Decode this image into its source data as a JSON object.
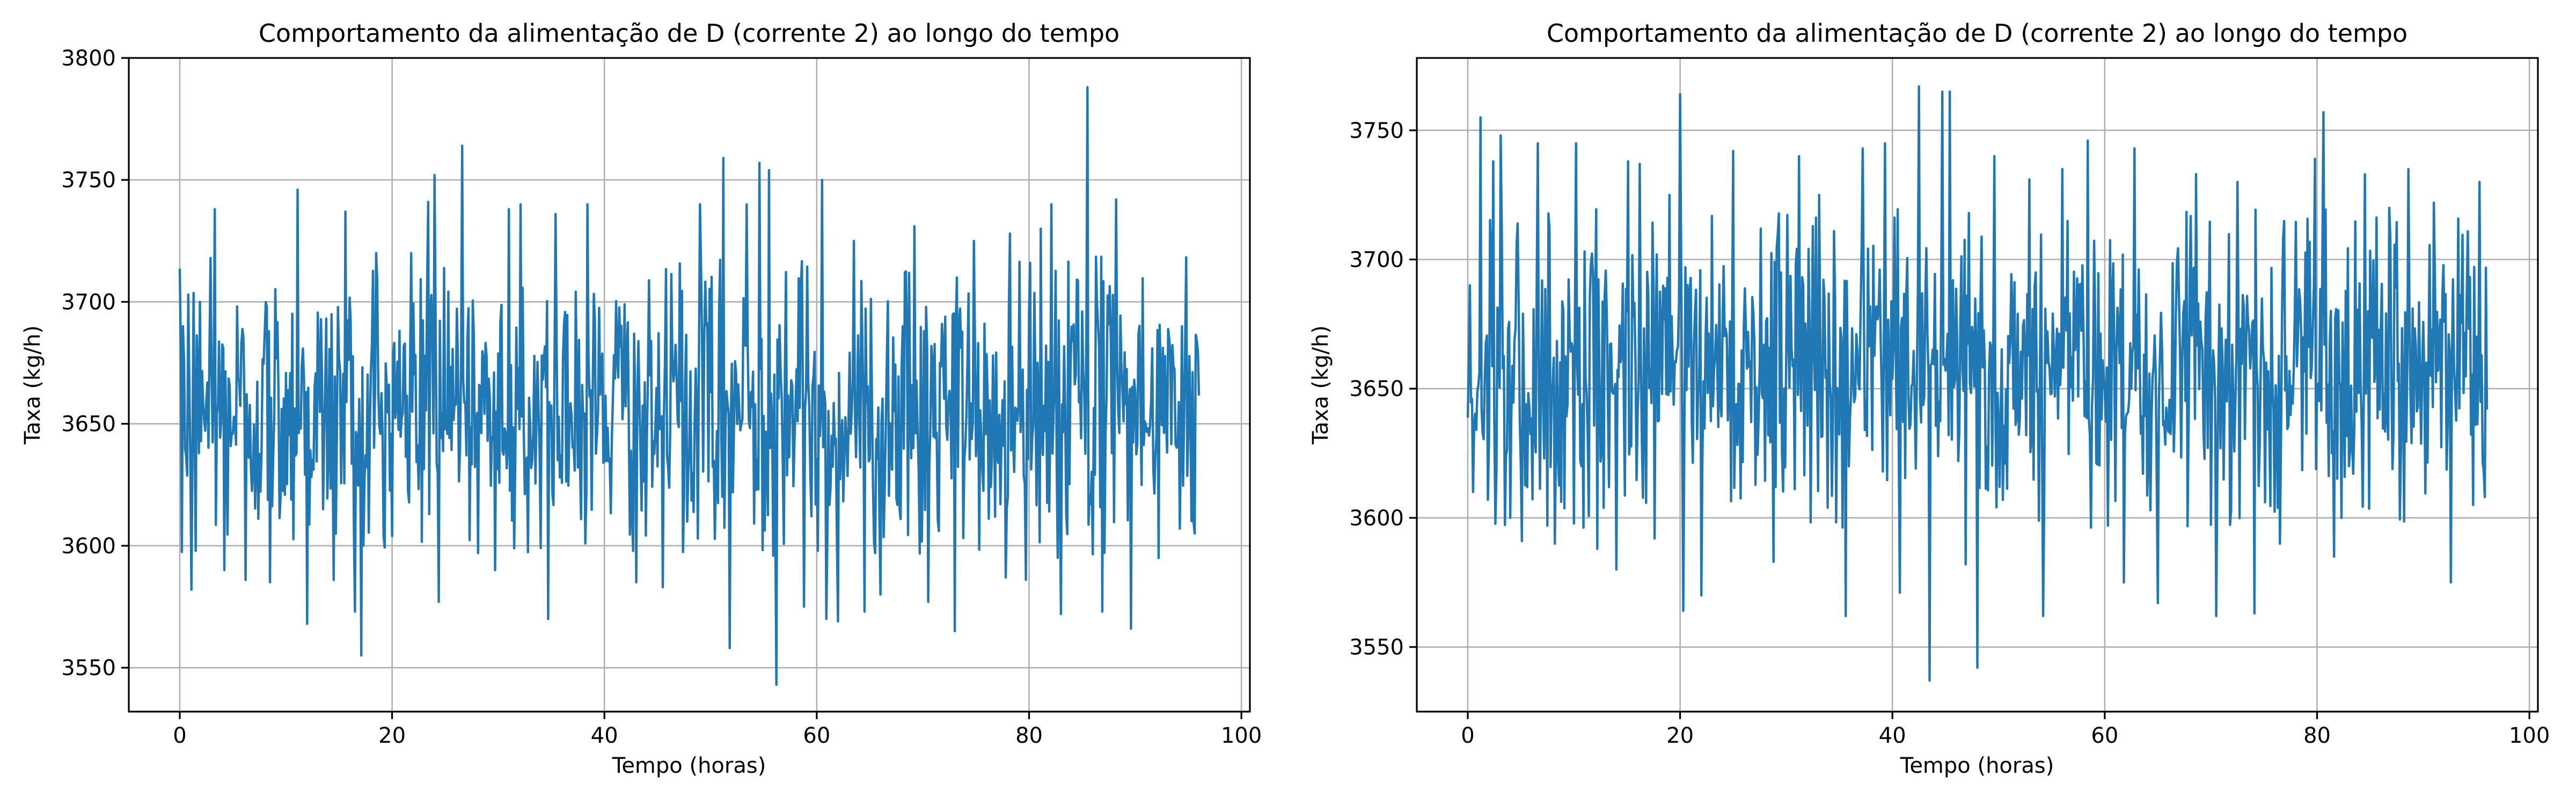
{
  "colors": {
    "series": "#1f77b4"
  },
  "chart_data": [
    {
      "type": "line",
      "title": "Comportamento da alimentação de D (corrente 2) ao longo do tempo",
      "xlabel": "Tempo (horas)",
      "ylabel": "Taxa (kg/h)",
      "xlim": [
        -4.8,
        100.8
      ],
      "ylim": [
        3532,
        3800
      ],
      "xticks": [
        0,
        20,
        40,
        60,
        80,
        100
      ],
      "yticks": [
        3550,
        3600,
        3650,
        3700,
        3750,
        3800
      ],
      "grid": true,
      "mean": 3657,
      "std": 30,
      "series": [
        {
          "x_range": [
            0,
            96
          ],
          "points_per_hour": 10,
          "features": [
            [
              0.3,
              3690
            ],
            [
              0.5,
              3640
            ],
            [
              0.8,
              3703
            ],
            [
              1.1,
              3582
            ],
            [
              1.9,
              3700
            ],
            [
              2.9,
              3718
            ],
            [
              3.3,
              3738
            ],
            [
              4.2,
              3590
            ],
            [
              6.2,
              3586
            ],
            [
              8.5,
              3585
            ],
            [
              11.1,
              3746
            ],
            [
              12.0,
              3568
            ],
            [
              13.5,
              3615
            ],
            [
              14.5,
              3586
            ],
            [
              15.6,
              3737
            ],
            [
              16.5,
              3573
            ],
            [
              17.1,
              3555
            ],
            [
              18.5,
              3720
            ],
            [
              20.0,
              3604
            ],
            [
              21.8,
              3720
            ],
            [
              23.4,
              3741
            ],
            [
              24.0,
              3752
            ],
            [
              24.4,
              3577
            ],
            [
              26.6,
              3764
            ],
            [
              28.1,
              3597
            ],
            [
              29.7,
              3590
            ],
            [
              31.0,
              3738
            ],
            [
              32.1,
              3740
            ],
            [
              34.7,
              3570
            ],
            [
              35.4,
              3736
            ],
            [
              38.4,
              3740
            ],
            [
              43.0,
              3585
            ],
            [
              45.5,
              3583
            ],
            [
              49.0,
              3740
            ],
            [
              51.2,
              3759
            ],
            [
              51.8,
              3558
            ],
            [
              53.4,
              3740
            ],
            [
              54.6,
              3757
            ],
            [
              55.5,
              3754
            ],
            [
              56.2,
              3543
            ],
            [
              58.8,
              3575
            ],
            [
              60.5,
              3750
            ],
            [
              60.9,
              3570
            ],
            [
              62.0,
              3569
            ],
            [
              63.5,
              3725
            ],
            [
              64.5,
              3573
            ],
            [
              66.0,
              3580
            ],
            [
              69.2,
              3731
            ],
            [
              70.5,
              3577
            ],
            [
              73.0,
              3565
            ],
            [
              74.8,
              3725
            ],
            [
              77.8,
              3587
            ],
            [
              78.2,
              3728
            ],
            [
              79.7,
              3586
            ],
            [
              81.1,
              3730
            ],
            [
              82.1,
              3740
            ],
            [
              83.0,
              3572
            ],
            [
              85.5,
              3788
            ],
            [
              86.9,
              3573
            ],
            [
              88.2,
              3742
            ],
            [
              89.6,
              3566
            ],
            [
              92.2,
              3595
            ],
            [
              94.2,
              3607
            ],
            [
              95.6,
              3605
            ]
          ]
        }
      ]
    },
    {
      "type": "line",
      "title": "Comportamento da alimentação de D (corrente 2) ao longo do tempo",
      "xlabel": "Tempo (horas)",
      "ylabel": "Taxa (kg/h)",
      "xlim": [
        -4.8,
        100.8
      ],
      "ylim": [
        3525,
        3778
      ],
      "xticks": [
        0,
        20,
        40,
        60,
        80,
        100
      ],
      "yticks": [
        3550,
        3600,
        3650,
        3700,
        3750
      ],
      "grid": true,
      "mean": 3658,
      "std": 30,
      "series": [
        {
          "x_range": [
            0,
            96
          ],
          "points_per_hour": 10,
          "features": [
            [
              0.2,
              3690
            ],
            [
              0.5,
              3610
            ],
            [
              1.2,
              3755
            ],
            [
              2.4,
              3738
            ],
            [
              3.1,
              3748
            ],
            [
              4.0,
              3600
            ],
            [
              5.1,
              3591
            ],
            [
              6.6,
              3745
            ],
            [
              8.2,
              3590
            ],
            [
              10.2,
              3745
            ],
            [
              12.2,
              3588
            ],
            [
              14.0,
              3580
            ],
            [
              15.1,
              3738
            ],
            [
              16.2,
              3737
            ],
            [
              17.6,
              3592
            ],
            [
              19.0,
              3725
            ],
            [
              20.0,
              3764
            ],
            [
              20.3,
              3564
            ],
            [
              22.0,
              3570
            ],
            [
              25.0,
              3742
            ],
            [
              28.8,
              3583
            ],
            [
              31.2,
              3740
            ],
            [
              33.1,
              3725
            ],
            [
              35.6,
              3562
            ],
            [
              37.2,
              3743
            ],
            [
              39.3,
              3745
            ],
            [
              40.7,
              3571
            ],
            [
              42.5,
              3767
            ],
            [
              43.5,
              3537
            ],
            [
              44.7,
              3765
            ],
            [
              45.4,
              3765
            ],
            [
              46.9,
              3582
            ],
            [
              48.0,
              3542
            ],
            [
              49.6,
              3740
            ],
            [
              52.9,
              3731
            ],
            [
              54.2,
              3562
            ],
            [
              56.0,
              3735
            ],
            [
              58.4,
              3746
            ],
            [
              61.8,
              3575
            ],
            [
              62.8,
              3743
            ],
            [
              65.0,
              3567
            ],
            [
              68.6,
              3733
            ],
            [
              70.5,
              3562
            ],
            [
              72.5,
              3730
            ],
            [
              74.1,
              3563
            ],
            [
              76.5,
              3590
            ],
            [
              79.8,
              3739
            ],
            [
              80.6,
              3757
            ],
            [
              81.6,
              3585
            ],
            [
              84.5,
              3733
            ],
            [
              86.8,
              3720
            ],
            [
              88.6,
              3735
            ],
            [
              91.0,
              3722
            ],
            [
              92.6,
              3575
            ],
            [
              94.7,
              3605
            ],
            [
              95.3,
              3730
            ],
            [
              95.8,
              3608
            ]
          ]
        }
      ]
    }
  ]
}
